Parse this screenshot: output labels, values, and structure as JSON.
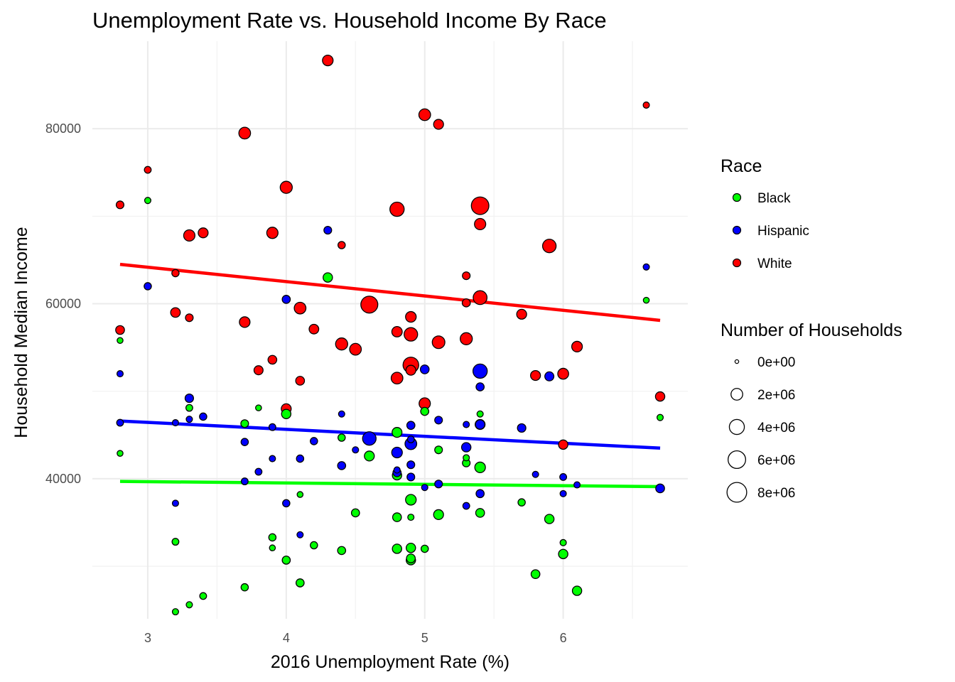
{
  "chart_data": {
    "type": "scatter",
    "title": "Unemployment Rate vs. Household Income By Race",
    "xlabel": "2016 Unemployment Rate (%)",
    "ylabel": "Household Median Income",
    "xlim": [
      2.6,
      6.9
    ],
    "ylim": [
      24000,
      90000
    ],
    "x_ticks": [
      3,
      4,
      5,
      6
    ],
    "x_tick_labels": [
      "3",
      "4",
      "5",
      "6"
    ],
    "y_ticks": [
      40000,
      60000,
      80000
    ],
    "y_tick_labels": [
      "40000",
      "60000",
      "80000"
    ],
    "grid": true,
    "legend_placement": "right",
    "colors": {
      "Black": "#00ff00",
      "Hispanic": "#0000ff",
      "White": "#ff0000"
    },
    "legend": {
      "race_title": "Race",
      "race_items": [
        "Black",
        "Hispanic",
        "White"
      ],
      "size_title": "Number of Households",
      "size_items": [
        {
          "label": "0e+00",
          "value": 0
        },
        {
          "label": "2e+06",
          "value": 2000000
        },
        {
          "label": "4e+06",
          "value": 4000000
        },
        {
          "label": "6e+06",
          "value": 6000000
        },
        {
          "label": "8e+06",
          "value": 8000000
        }
      ]
    },
    "size_max_value": 8500000,
    "series": [
      {
        "name": "White",
        "trend": {
          "x": [
            2.8,
            6.7
          ],
          "y": [
            64500,
            58100
          ]
        },
        "points": [
          [
            4.3,
            87800,
            1500000
          ],
          [
            6.6,
            82700,
            200000
          ],
          [
            5.0,
            81600,
            2000000
          ],
          [
            5.1,
            80500,
            1200000
          ],
          [
            3.7,
            79500,
            2000000
          ],
          [
            3.0,
            75300,
            300000
          ],
          [
            4.0,
            73300,
            2200000
          ],
          [
            2.8,
            71300,
            500000
          ],
          [
            4.8,
            70800,
            3500000
          ],
          [
            5.4,
            71200,
            6000000
          ],
          [
            5.4,
            69100,
            1800000
          ],
          [
            3.3,
            67800,
            1800000
          ],
          [
            3.4,
            68100,
            1200000
          ],
          [
            3.9,
            68100,
            1800000
          ],
          [
            4.4,
            66700,
            400000
          ],
          [
            5.9,
            66600,
            3000000
          ],
          [
            3.2,
            63500,
            400000
          ],
          [
            5.3,
            63200,
            500000
          ],
          [
            5.3,
            60100,
            600000
          ],
          [
            5.4,
            60700,
            3200000
          ],
          [
            4.6,
            59900,
            5500000
          ],
          [
            4.1,
            59500,
            2000000
          ],
          [
            3.2,
            59000,
            1100000
          ],
          [
            3.3,
            58400,
            500000
          ],
          [
            4.9,
            58500,
            1500000
          ],
          [
            5.7,
            58800,
            1200000
          ],
          [
            3.7,
            57900,
            1500000
          ],
          [
            2.8,
            57000,
            800000
          ],
          [
            4.2,
            57100,
            1100000
          ],
          [
            4.8,
            56800,
            1400000
          ],
          [
            4.9,
            56500,
            3000000
          ],
          [
            5.3,
            56000,
            2200000
          ],
          [
            4.4,
            55400,
            2200000
          ],
          [
            4.5,
            54800,
            2000000
          ],
          [
            5.1,
            55600,
            2500000
          ],
          [
            6.1,
            55100,
            1500000
          ],
          [
            3.9,
            53600,
            800000
          ],
          [
            4.9,
            53000,
            4500000
          ],
          [
            3.8,
            52400,
            900000
          ],
          [
            4.9,
            52400,
            1200000
          ],
          [
            4.8,
            51500,
            2000000
          ],
          [
            5.8,
            51800,
            1200000
          ],
          [
            6.0,
            52000,
            1600000
          ],
          [
            4.1,
            51200,
            800000
          ],
          [
            5.0,
            48600,
            1800000
          ],
          [
            4.0,
            48000,
            1200000
          ],
          [
            6.7,
            49400,
            1000000
          ],
          [
            6.0,
            43900,
            1000000
          ]
        ]
      },
      {
        "name": "Hispanic",
        "trend": {
          "x": [
            2.8,
            6.7
          ],
          "y": [
            46600,
            43500
          ]
        },
        "points": [
          [
            4.3,
            68400,
            500000
          ],
          [
            6.6,
            64200,
            200000
          ],
          [
            3.0,
            62000,
            400000
          ],
          [
            4.0,
            60500,
            600000
          ],
          [
            2.8,
            52000,
            200000
          ],
          [
            5.0,
            52500,
            800000
          ],
          [
            5.9,
            51700,
            900000
          ],
          [
            5.4,
            52300,
            3500000
          ],
          [
            5.4,
            50500,
            600000
          ],
          [
            3.3,
            49200,
            700000
          ],
          [
            4.4,
            47400,
            200000
          ],
          [
            3.4,
            47100,
            400000
          ],
          [
            3.3,
            46800,
            200000
          ],
          [
            2.8,
            46400,
            300000
          ],
          [
            3.2,
            46400,
            200000
          ],
          [
            5.1,
            46700,
            500000
          ],
          [
            5.3,
            46200,
            200000
          ],
          [
            4.9,
            46100,
            600000
          ],
          [
            5.4,
            46200,
            1000000
          ],
          [
            5.7,
            45800,
            700000
          ],
          [
            3.9,
            45900,
            300000
          ],
          [
            4.6,
            44600,
            3000000
          ],
          [
            3.7,
            44200,
            400000
          ],
          [
            4.2,
            44300,
            400000
          ],
          [
            4.9,
            44000,
            2000000
          ],
          [
            4.9,
            44500,
            300000
          ],
          [
            5.3,
            43600,
            1000000
          ],
          [
            4.8,
            43000,
            1500000
          ],
          [
            4.5,
            43300,
            200000
          ],
          [
            3.9,
            42300,
            200000
          ],
          [
            4.1,
            42300,
            400000
          ],
          [
            4.4,
            41500,
            600000
          ],
          [
            4.9,
            41600,
            500000
          ],
          [
            3.8,
            40800,
            300000
          ],
          [
            4.8,
            40700,
            600000
          ],
          [
            4.8,
            41000,
            200000
          ],
          [
            6.0,
            40200,
            300000
          ],
          [
            4.9,
            40200,
            500000
          ],
          [
            5.8,
            40500,
            200000
          ],
          [
            5.1,
            39400,
            500000
          ],
          [
            5.0,
            39000,
            200000
          ],
          [
            6.1,
            39300,
            200000
          ],
          [
            6.7,
            38900,
            800000
          ],
          [
            5.4,
            38300,
            600000
          ],
          [
            6.0,
            38300,
            200000
          ],
          [
            3.2,
            37200,
            200000
          ],
          [
            4.0,
            37200,
            400000
          ],
          [
            5.3,
            36900,
            300000
          ],
          [
            4.1,
            33600,
            200000
          ],
          [
            3.7,
            39700,
            300000
          ]
        ]
      },
      {
        "name": "Black",
        "trend": {
          "x": [
            2.8,
            6.7
          ],
          "y": [
            39700,
            39100
          ]
        },
        "points": [
          [
            4.3,
            63000,
            1000000
          ],
          [
            3.0,
            71800,
            200000
          ],
          [
            6.6,
            60400,
            150000
          ],
          [
            2.8,
            55800,
            150000
          ],
          [
            3.3,
            48100,
            300000
          ],
          [
            3.8,
            48100,
            150000
          ],
          [
            4.0,
            47400,
            1000000
          ],
          [
            5.0,
            47700,
            600000
          ],
          [
            5.4,
            47400,
            200000
          ],
          [
            6.7,
            47000,
            200000
          ],
          [
            3.7,
            46300,
            500000
          ],
          [
            5.4,
            46200,
            1200000
          ],
          [
            4.8,
            45300,
            1200000
          ],
          [
            4.4,
            44700,
            400000
          ],
          [
            2.8,
            42900,
            150000
          ],
          [
            5.1,
            43300,
            500000
          ],
          [
            4.6,
            42600,
            1200000
          ],
          [
            5.3,
            42400,
            200000
          ],
          [
            5.3,
            41800,
            500000
          ],
          [
            5.4,
            41300,
            1500000
          ],
          [
            4.8,
            40400,
            1000000
          ],
          [
            4.1,
            38200,
            150000
          ],
          [
            4.9,
            37600,
            1500000
          ],
          [
            5.7,
            37300,
            400000
          ],
          [
            4.5,
            36100,
            600000
          ],
          [
            5.4,
            36100,
            800000
          ],
          [
            5.1,
            35900,
            1200000
          ],
          [
            4.8,
            35600,
            800000
          ],
          [
            4.9,
            35600,
            200000
          ],
          [
            5.9,
            35400,
            1000000
          ],
          [
            3.9,
            33300,
            400000
          ],
          [
            3.2,
            32800,
            300000
          ],
          [
            6.0,
            32700,
            200000
          ],
          [
            4.2,
            32400,
            400000
          ],
          [
            3.9,
            32100,
            150000
          ],
          [
            4.4,
            31800,
            600000
          ],
          [
            4.8,
            32000,
            1000000
          ],
          [
            4.9,
            32100,
            1000000
          ],
          [
            5.0,
            32000,
            400000
          ],
          [
            6.0,
            31400,
            1000000
          ],
          [
            4.0,
            30700,
            600000
          ],
          [
            4.9,
            30700,
            1000000
          ],
          [
            4.9,
            30900,
            800000
          ],
          [
            5.8,
            29100,
            800000
          ],
          [
            4.1,
            28100,
            600000
          ],
          [
            3.7,
            27600,
            400000
          ],
          [
            6.1,
            27200,
            1000000
          ],
          [
            3.4,
            26600,
            300000
          ],
          [
            3.3,
            25600,
            200000
          ],
          [
            3.2,
            24800,
            200000
          ]
        ]
      }
    ]
  }
}
